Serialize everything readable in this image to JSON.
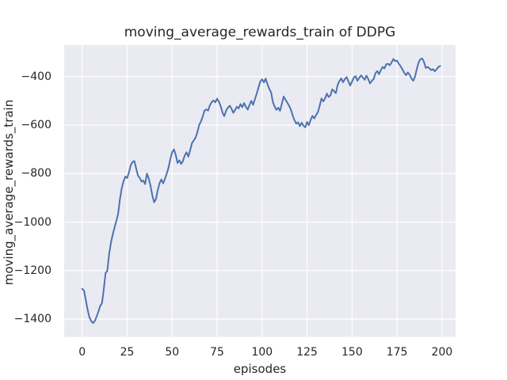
{
  "chart_data": {
    "type": "line",
    "title": "moving_average_rewards_train of DDPG",
    "xlabel": "episodes",
    "ylabel": "moving_average_rewards_train",
    "legend": "none",
    "grid": true,
    "style": "seaborn-darkgrid",
    "line_color": "#4C72B0",
    "plot_bg_color": "#EAEAF2",
    "grid_color": "#FFFFFF",
    "text_color": "#262626",
    "figure_bg_color": "#FFFFFF",
    "xlim": [
      -10,
      207.5
    ],
    "ylim": [
      -1473,
      -270
    ],
    "xticks": {
      "values": [
        0,
        25,
        50,
        75,
        100,
        125,
        150,
        175,
        200
      ],
      "labels": [
        "0",
        "25",
        "50",
        "75",
        "100",
        "125",
        "150",
        "175",
        "200"
      ]
    },
    "yticks": {
      "values": [
        -400,
        -600,
        -800,
        -1000,
        -1200,
        -1400
      ],
      "labels": [
        "−400",
        "−600",
        "−800",
        "−1000",
        "−1200",
        "−1400"
      ]
    },
    "x_start": 0,
    "x_step": 1,
    "values": [
      -1275,
      -1282,
      -1320,
      -1360,
      -1392,
      -1408,
      -1416,
      -1408,
      -1390,
      -1370,
      -1346,
      -1335,
      -1278,
      -1210,
      -1200,
      -1130,
      -1085,
      -1051,
      -1022,
      -995,
      -965,
      -905,
      -860,
      -832,
      -812,
      -818,
      -795,
      -765,
      -752,
      -748,
      -778,
      -808,
      -818,
      -833,
      -828,
      -843,
      -800,
      -820,
      -850,
      -890,
      -918,
      -905,
      -868,
      -840,
      -824,
      -840,
      -822,
      -800,
      -775,
      -740,
      -712,
      -700,
      -722,
      -756,
      -745,
      -760,
      -748,
      -725,
      -712,
      -730,
      -704,
      -675,
      -663,
      -652,
      -630,
      -600,
      -585,
      -565,
      -540,
      -535,
      -540,
      -518,
      -505,
      -498,
      -506,
      -491,
      -503,
      -522,
      -548,
      -563,
      -540,
      -528,
      -520,
      -532,
      -549,
      -537,
      -524,
      -531,
      -513,
      -526,
      -509,
      -524,
      -536,
      -517,
      -500,
      -516,
      -493,
      -470,
      -445,
      -420,
      -411,
      -424,
      -408,
      -431,
      -450,
      -465,
      -505,
      -524,
      -537,
      -528,
      -541,
      -512,
      -482,
      -495,
      -507,
      -520,
      -536,
      -560,
      -580,
      -594,
      -588,
      -604,
      -590,
      -602,
      -609,
      -587,
      -600,
      -578,
      -562,
      -572,
      -558,
      -547,
      -520,
      -490,
      -502,
      -490,
      -470,
      -484,
      -477,
      -452,
      -460,
      -468,
      -434,
      -418,
      -407,
      -423,
      -410,
      -402,
      -420,
      -437,
      -420,
      -404,
      -398,
      -417,
      -405,
      -395,
      -404,
      -413,
      -396,
      -410,
      -428,
      -417,
      -410,
      -386,
      -377,
      -390,
      -373,
      -360,
      -366,
      -349,
      -347,
      -353,
      -341,
      -327,
      -336,
      -334,
      -347,
      -357,
      -370,
      -384,
      -394,
      -383,
      -392,
      -407,
      -417,
      -400,
      -368,
      -341,
      -328,
      -325,
      -340,
      -364,
      -360,
      -366,
      -373,
      -369,
      -378,
      -369,
      -360,
      -356
    ]
  }
}
